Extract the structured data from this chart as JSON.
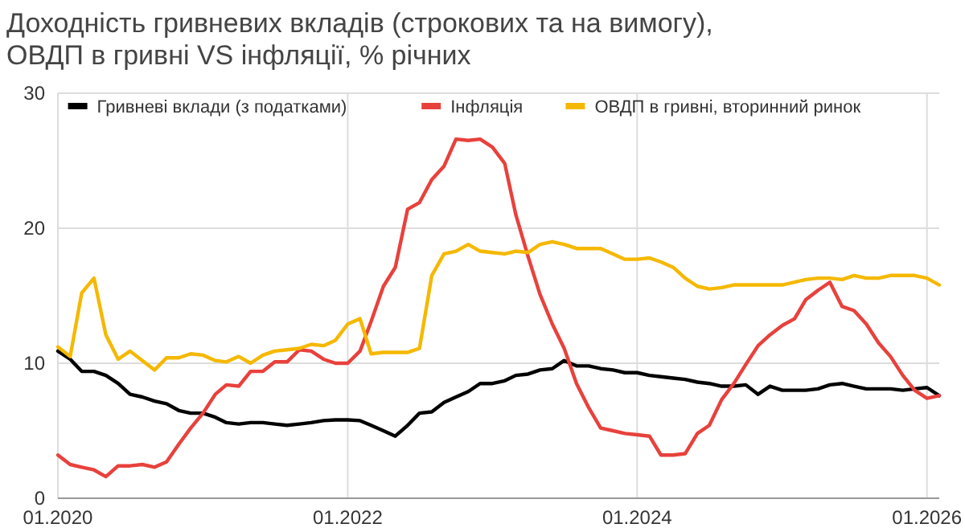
{
  "chart_data": {
    "type": "line",
    "title": "Доходність гривневих вкладів (строкових та на вимогу),\nОВДП в гривні VS інфляції, % річних",
    "x": [
      "2020-01",
      "2020-02",
      "2020-03",
      "2020-04",
      "2020-05",
      "2020-06",
      "2020-07",
      "2020-08",
      "2020-09",
      "2020-10",
      "2020-11",
      "2020-12",
      "2021-01",
      "2021-02",
      "2021-03",
      "2021-04",
      "2021-05",
      "2021-06",
      "2021-07",
      "2021-08",
      "2021-09",
      "2021-10",
      "2021-11",
      "2021-12",
      "2022-01",
      "2022-02",
      "2022-03",
      "2022-04",
      "2022-05",
      "2022-06",
      "2022-07",
      "2022-08",
      "2022-09",
      "2022-10",
      "2022-11",
      "2022-12",
      "2023-01",
      "2023-02",
      "2023-03",
      "2023-04",
      "2023-05",
      "2023-06",
      "2023-07",
      "2023-08",
      "2023-09",
      "2023-10",
      "2023-11",
      "2023-12",
      "2024-01",
      "2024-02",
      "2024-03",
      "2024-04",
      "2024-05",
      "2024-06",
      "2024-07",
      "2024-08",
      "2024-09",
      "2024-10",
      "2024-11",
      "2024-12",
      "2025-01",
      "2025-02",
      "2025-03",
      "2025-04",
      "2025-05",
      "2025-06",
      "2025-07",
      "2025-08",
      "2025-09",
      "2025-10",
      "2025-11",
      "2025-12",
      "2026-01",
      "2026-02"
    ],
    "series": [
      {
        "name": "Гривневі вклади (з податками)",
        "color": "#000000",
        "values": [
          10.9,
          10.3,
          9.4,
          9.4,
          9.1,
          8.5,
          7.7,
          7.5,
          7.2,
          7.0,
          6.5,
          6.3,
          6.3,
          6.0,
          5.6,
          5.5,
          5.6,
          5.6,
          5.5,
          5.4,
          5.5,
          5.6,
          5.75,
          5.8,
          5.8,
          5.75,
          5.4,
          5.0,
          4.6,
          5.4,
          6.3,
          6.4,
          7.1,
          7.5,
          7.9,
          8.5,
          8.5,
          8.7,
          9.1,
          9.2,
          9.5,
          9.6,
          10.2,
          9.8,
          9.8,
          9.6,
          9.5,
          9.3,
          9.3,
          9.1,
          9.0,
          8.9,
          8.8,
          8.6,
          8.5,
          8.3,
          8.3,
          8.4,
          7.7,
          8.3,
          8.0,
          8.0,
          8.0,
          8.1,
          8.4,
          8.5,
          8.3,
          8.1,
          8.1,
          8.1,
          8.0,
          8.1,
          8.2,
          7.6
        ]
      },
      {
        "name": "Інфляція",
        "color": "#e8413c",
        "values": [
          3.2,
          2.5,
          2.3,
          2.1,
          1.6,
          2.4,
          2.4,
          2.5,
          2.3,
          2.7,
          4.0,
          5.2,
          6.3,
          7.7,
          8.4,
          8.3,
          9.4,
          9.4,
          10.1,
          10.1,
          11.0,
          10.9,
          10.3,
          10.0,
          10.0,
          10.9,
          13.1,
          15.7,
          17.1,
          21.4,
          21.9,
          23.6,
          24.6,
          26.6,
          26.5,
          26.6,
          26.0,
          24.8,
          21.0,
          17.9,
          15.1,
          12.9,
          11.1,
          8.5,
          6.7,
          5.2,
          5.0,
          4.8,
          4.7,
          4.6,
          3.2,
          3.2,
          3.3,
          4.8,
          5.4,
          7.3,
          8.5,
          9.9,
          11.3,
          12.1,
          12.8,
          13.3,
          14.7,
          15.4,
          16.0,
          14.2,
          13.9,
          12.9,
          11.5,
          10.5,
          9.1,
          8.0,
          7.4,
          7.6
        ]
      },
      {
        "name": "ОВДП в гривні, вторинний ринок",
        "color": "#f5b800",
        "values": [
          11.2,
          10.5,
          15.2,
          16.3,
          12.1,
          10.3,
          10.9,
          10.2,
          9.5,
          10.4,
          10.4,
          10.7,
          10.6,
          10.2,
          10.1,
          10.5,
          10.0,
          10.6,
          10.9,
          11.0,
          11.1,
          11.4,
          11.3,
          11.7,
          12.9,
          13.3,
          10.7,
          10.8,
          10.8,
          10.8,
          11.1,
          16.5,
          18.1,
          18.3,
          18.8,
          18.3,
          18.2,
          18.1,
          18.3,
          18.2,
          18.8,
          19.0,
          18.8,
          18.5,
          18.5,
          18.5,
          18.1,
          17.7,
          17.7,
          17.8,
          17.5,
          17.1,
          16.3,
          15.7,
          15.5,
          15.6,
          15.8,
          15.8,
          15.8,
          15.8,
          15.8,
          16.0,
          16.2,
          16.3,
          16.3,
          16.2,
          16.5,
          16.3,
          16.3,
          16.5,
          16.5,
          16.5,
          16.3,
          15.8
        ]
      }
    ],
    "xlim": [
      "2020-01",
      "2026-02"
    ],
    "xticks": [
      {
        "value": "2020-01",
        "label": "01.2020"
      },
      {
        "value": "2022-01",
        "label": "01.2022"
      },
      {
        "value": "2024-01",
        "label": "01.2024"
      },
      {
        "value": "2026-01",
        "label": "01.2026"
      }
    ],
    "ylim": [
      0,
      30
    ],
    "yticks": [
      0,
      10,
      20,
      30
    ],
    "grid": true,
    "legend": "top",
    "marker": "none",
    "line_style": "solid"
  }
}
